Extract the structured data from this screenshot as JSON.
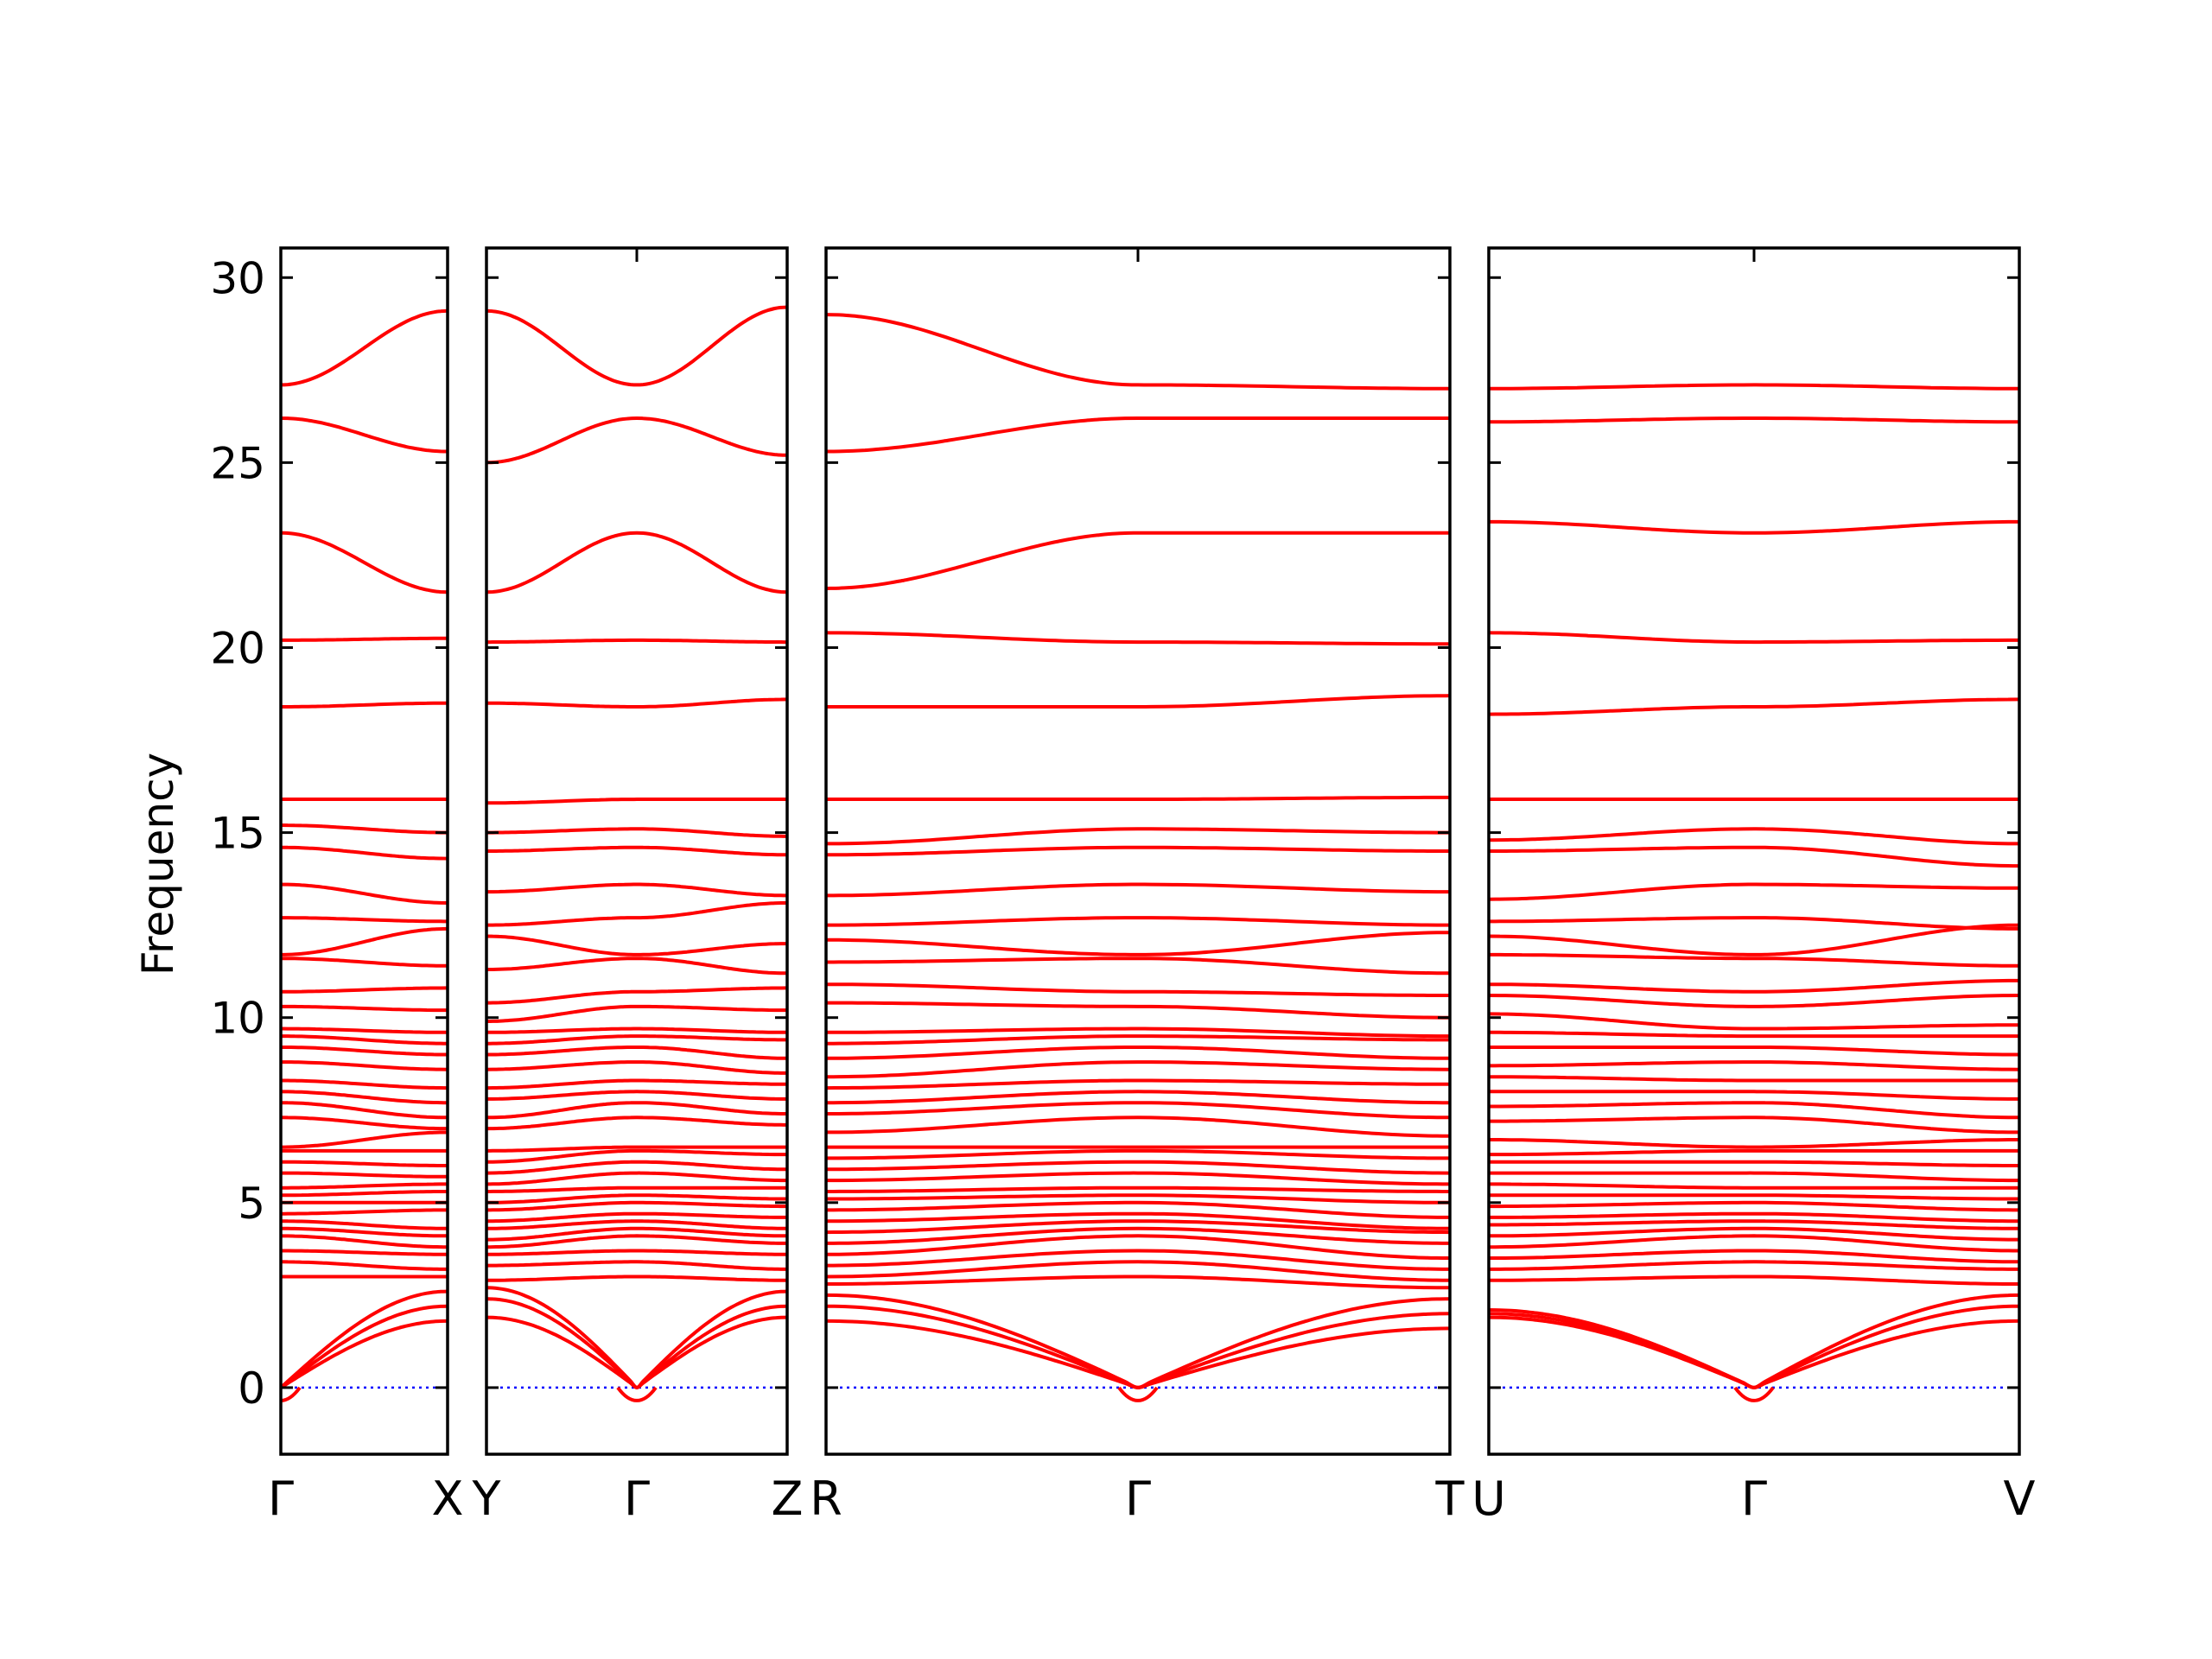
{
  "chart_data": {
    "type": "line",
    "ylabel": "Frequency",
    "ylim": [
      -1.8,
      30.8
    ],
    "yticks": [
      0,
      5,
      10,
      15,
      20,
      25,
      30
    ],
    "zero_line": {
      "y": 0,
      "style": "dotted",
      "color": "#0000ff"
    },
    "band_color": "#ff0000",
    "panels": [
      {
        "kpoints": [
          {
            "label": "Γ",
            "x": 0
          },
          {
            "label": "X",
            "x": 1
          }
        ],
        "bands": [
          [
            27.1,
            29.1
          ],
          [
            26.2,
            25.3
          ],
          [
            23.1,
            21.5
          ],
          [
            20.2,
            20.25
          ],
          [
            18.4,
            18.5
          ],
          [
            15.9,
            15.9
          ],
          [
            15.2,
            15.0
          ],
          [
            14.6,
            14.3
          ],
          [
            13.6,
            13.1
          ],
          [
            12.7,
            12.6
          ],
          [
            11.7,
            12.4
          ],
          [
            11.6,
            11.4
          ],
          [
            10.7,
            10.8
          ],
          [
            10.3,
            10.2
          ],
          [
            9.7,
            9.6
          ],
          [
            9.5,
            9.3
          ],
          [
            9.2,
            9.0
          ],
          [
            8.8,
            8.6
          ],
          [
            8.3,
            8.1
          ],
          [
            8.0,
            7.7
          ],
          [
            7.7,
            7.3
          ],
          [
            7.3,
            7.0
          ],
          [
            6.5,
            6.9
          ],
          [
            6.4,
            6.4
          ],
          [
            6.1,
            6.0
          ],
          [
            5.8,
            5.7
          ],
          [
            5.4,
            5.5
          ],
          [
            5.2,
            5.3
          ],
          [
            5.0,
            5.0
          ],
          [
            4.7,
            4.8
          ],
          [
            4.5,
            4.3
          ],
          [
            4.3,
            4.1
          ],
          [
            4.1,
            3.8
          ],
          [
            3.7,
            3.6
          ],
          [
            3.4,
            3.2
          ],
          [
            3.0,
            3.0
          ],
          [
            0.0,
            2.6
          ],
          [
            0.0,
            2.2
          ],
          [
            0.0,
            1.8
          ]
        ]
      },
      {
        "kpoints": [
          {
            "label": "Y",
            "x": 0
          },
          {
            "label": "Γ",
            "x": 1
          },
          {
            "label": "Z",
            "x": 2
          }
        ],
        "bands": [
          [
            29.1,
            27.1,
            29.2
          ],
          [
            25.0,
            26.2,
            25.2
          ],
          [
            21.5,
            23.1,
            21.5
          ],
          [
            20.15,
            20.2,
            20.15
          ],
          [
            18.5,
            18.4,
            18.6
          ],
          [
            15.8,
            15.9,
            15.9
          ],
          [
            15.0,
            15.1,
            14.9
          ],
          [
            14.5,
            14.6,
            14.4
          ],
          [
            13.4,
            13.6,
            13.3
          ],
          [
            12.5,
            12.7,
            13.1
          ],
          [
            12.2,
            11.7,
            12.0
          ],
          [
            11.3,
            11.6,
            11.2
          ],
          [
            10.4,
            10.7,
            10.8
          ],
          [
            9.9,
            10.3,
            10.2
          ],
          [
            9.6,
            9.7,
            9.6
          ],
          [
            9.3,
            9.5,
            9.4
          ],
          [
            9.0,
            9.2,
            8.9
          ],
          [
            8.6,
            8.8,
            8.5
          ],
          [
            8.1,
            8.3,
            8.2
          ],
          [
            7.8,
            8.0,
            7.8
          ],
          [
            7.3,
            7.7,
            7.4
          ],
          [
            7.0,
            7.3,
            7.1
          ],
          [
            6.4,
            6.5,
            6.5
          ],
          [
            6.1,
            6.4,
            6.3
          ],
          [
            5.8,
            6.1,
            5.9
          ],
          [
            5.5,
            5.8,
            5.6
          ],
          [
            5.3,
            5.4,
            5.4
          ],
          [
            5.0,
            5.2,
            5.1
          ],
          [
            4.8,
            5.0,
            4.9
          ],
          [
            4.5,
            4.7,
            4.6
          ],
          [
            4.3,
            4.5,
            4.3
          ],
          [
            4.0,
            4.3,
            4.1
          ],
          [
            3.8,
            4.1,
            3.9
          ],
          [
            3.6,
            3.7,
            3.6
          ],
          [
            3.3,
            3.4,
            3.2
          ],
          [
            2.9,
            3.0,
            2.9
          ],
          [
            2.7,
            0.0,
            2.6
          ],
          [
            2.4,
            0.0,
            2.2
          ],
          [
            1.9,
            0.0,
            1.9
          ]
        ]
      },
      {
        "kpoints": [
          {
            "label": "R",
            "x": 0
          },
          {
            "label": "Γ",
            "x": 1
          },
          {
            "label": "T",
            "x": 2
          }
        ],
        "bands": [
          [
            29.0,
            27.1,
            27.0
          ],
          [
            25.3,
            26.2,
            26.2
          ],
          [
            21.6,
            23.1,
            23.1
          ],
          [
            20.4,
            20.15,
            20.1
          ],
          [
            18.4,
            18.4,
            18.7
          ],
          [
            15.9,
            15.9,
            15.95
          ],
          [
            14.7,
            15.1,
            15.0
          ],
          [
            14.4,
            14.6,
            14.5
          ],
          [
            13.3,
            13.6,
            13.4
          ],
          [
            12.5,
            12.7,
            12.5
          ],
          [
            12.1,
            11.7,
            12.3
          ],
          [
            11.5,
            11.6,
            11.2
          ],
          [
            10.9,
            10.7,
            10.6
          ],
          [
            10.4,
            10.3,
            10.0
          ],
          [
            9.6,
            9.7,
            9.5
          ],
          [
            9.3,
            9.5,
            9.4
          ],
          [
            8.9,
            9.2,
            8.9
          ],
          [
            8.4,
            8.8,
            8.6
          ],
          [
            8.1,
            8.3,
            8.2
          ],
          [
            7.7,
            8.0,
            7.7
          ],
          [
            7.4,
            7.7,
            7.3
          ],
          [
            6.9,
            7.3,
            6.8
          ],
          [
            6.5,
            6.5,
            6.5
          ],
          [
            6.2,
            6.4,
            6.2
          ],
          [
            5.9,
            6.1,
            5.8
          ],
          [
            5.6,
            5.8,
            5.5
          ],
          [
            5.3,
            5.4,
            5.3
          ],
          [
            5.1,
            5.2,
            5.0
          ],
          [
            4.8,
            5.0,
            4.6
          ],
          [
            4.5,
            4.7,
            4.3
          ],
          [
            4.2,
            4.5,
            4.2
          ],
          [
            3.9,
            4.3,
            3.9
          ],
          [
            3.6,
            4.1,
            3.5
          ],
          [
            3.3,
            3.7,
            3.2
          ],
          [
            3.0,
            3.4,
            2.9
          ],
          [
            2.8,
            3.0,
            2.7
          ],
          [
            2.5,
            0.0,
            2.4
          ],
          [
            2.2,
            0.0,
            2.0
          ],
          [
            1.8,
            0.0,
            1.6
          ]
        ]
      },
      {
        "kpoints": [
          {
            "label": "U",
            "x": 0
          },
          {
            "label": "Γ",
            "x": 1
          },
          {
            "label": "V",
            "x": 2
          }
        ],
        "bands": [
          [
            27.0,
            27.1,
            27.0
          ],
          [
            26.1,
            26.2,
            26.1
          ],
          [
            23.4,
            23.1,
            23.4
          ],
          [
            20.4,
            20.15,
            20.2
          ],
          [
            18.2,
            18.4,
            18.6
          ],
          [
            15.9,
            15.9,
            15.9
          ],
          [
            14.8,
            15.1,
            14.7
          ],
          [
            14.5,
            14.6,
            14.1
          ],
          [
            13.2,
            13.6,
            13.5
          ],
          [
            12.6,
            12.7,
            12.4
          ],
          [
            12.2,
            11.7,
            12.5
          ],
          [
            11.7,
            11.6,
            11.4
          ],
          [
            10.9,
            10.7,
            11.0
          ],
          [
            10.6,
            10.3,
            10.6
          ],
          [
            10.1,
            9.7,
            9.8
          ],
          [
            9.6,
            9.5,
            9.5
          ],
          [
            9.2,
            9.2,
            9.0
          ],
          [
            8.7,
            8.8,
            8.6
          ],
          [
            8.4,
            8.3,
            8.3
          ],
          [
            8.0,
            8.0,
            7.8
          ],
          [
            7.6,
            7.7,
            7.3
          ],
          [
            7.2,
            7.3,
            6.9
          ],
          [
            6.7,
            6.5,
            6.7
          ],
          [
            6.3,
            6.4,
            6.4
          ],
          [
            6.1,
            6.1,
            6.0
          ],
          [
            5.8,
            5.8,
            5.6
          ],
          [
            5.5,
            5.4,
            5.4
          ],
          [
            5.2,
            5.2,
            5.1
          ],
          [
            4.9,
            5.0,
            4.8
          ],
          [
            4.6,
            4.7,
            4.5
          ],
          [
            4.4,
            4.5,
            4.3
          ],
          [
            4.1,
            4.3,
            4.0
          ],
          [
            3.8,
            4.1,
            3.7
          ],
          [
            3.5,
            3.7,
            3.4
          ],
          [
            3.2,
            3.4,
            3.2
          ],
          [
            2.9,
            3.0,
            2.8
          ],
          [
            2.1,
            0.0,
            2.5
          ],
          [
            2.0,
            0.0,
            2.2
          ],
          [
            1.9,
            0.0,
            1.8
          ]
        ]
      }
    ]
  }
}
